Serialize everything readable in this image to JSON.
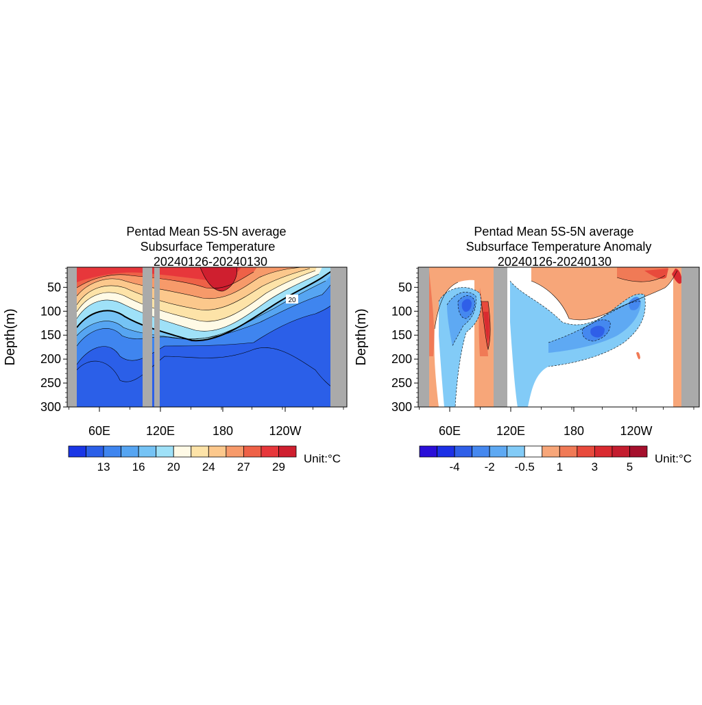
{
  "charts": [
    {
      "type": "heatmap",
      "title_lines": [
        "Pentad Mean 5S-5N average",
        "Subsurface Temperature",
        "20240126-20240130"
      ],
      "ylabel": "Depth(m)",
      "x_ticks": [
        "60E",
        "120E",
        "180",
        "120W"
      ],
      "y_ticks": [
        "50",
        "100",
        "150",
        "200",
        "250",
        "300"
      ],
      "contour_label": "20",
      "unit_text": "Unit:°C",
      "colorbar_labels": [
        "13",
        "16",
        "20",
        "24",
        "27",
        "29"
      ],
      "colorbar_colors": [
        "#1a36e6",
        "#2b5fe8",
        "#3f85ef",
        "#56a5f2",
        "#75c3f5",
        "#9fe1f8",
        "#fffae6",
        "#fde3a8",
        "#fcc88c",
        "#f79a6a",
        "#ee6147",
        "#e7373b",
        "#cf1f2f"
      ]
    },
    {
      "type": "heatmap",
      "title_lines": [
        "Pentad Mean 5S-5N average",
        "Subsurface Temperature Anomaly",
        "20240126-20240130"
      ],
      "ylabel": "Depth(m)",
      "x_ticks": [
        "60E",
        "120E",
        "180",
        "120W"
      ],
      "y_ticks": [
        "50",
        "100",
        "150",
        "200",
        "250",
        "300"
      ],
      "unit_text": "Unit:°C",
      "colorbar_labels": [
        "-4",
        "-2",
        "-0.5",
        "1",
        "3",
        "5"
      ],
      "colorbar_colors": [
        "#2a0fd8",
        "#1c30e6",
        "#2f5fe8",
        "#4588ef",
        "#5ea9f3",
        "#82cbf7",
        "#ffffff",
        "#f7a679",
        "#f07a56",
        "#e84a3c",
        "#d92a30",
        "#c41d2f",
        "#a50f2c"
      ]
    }
  ]
}
